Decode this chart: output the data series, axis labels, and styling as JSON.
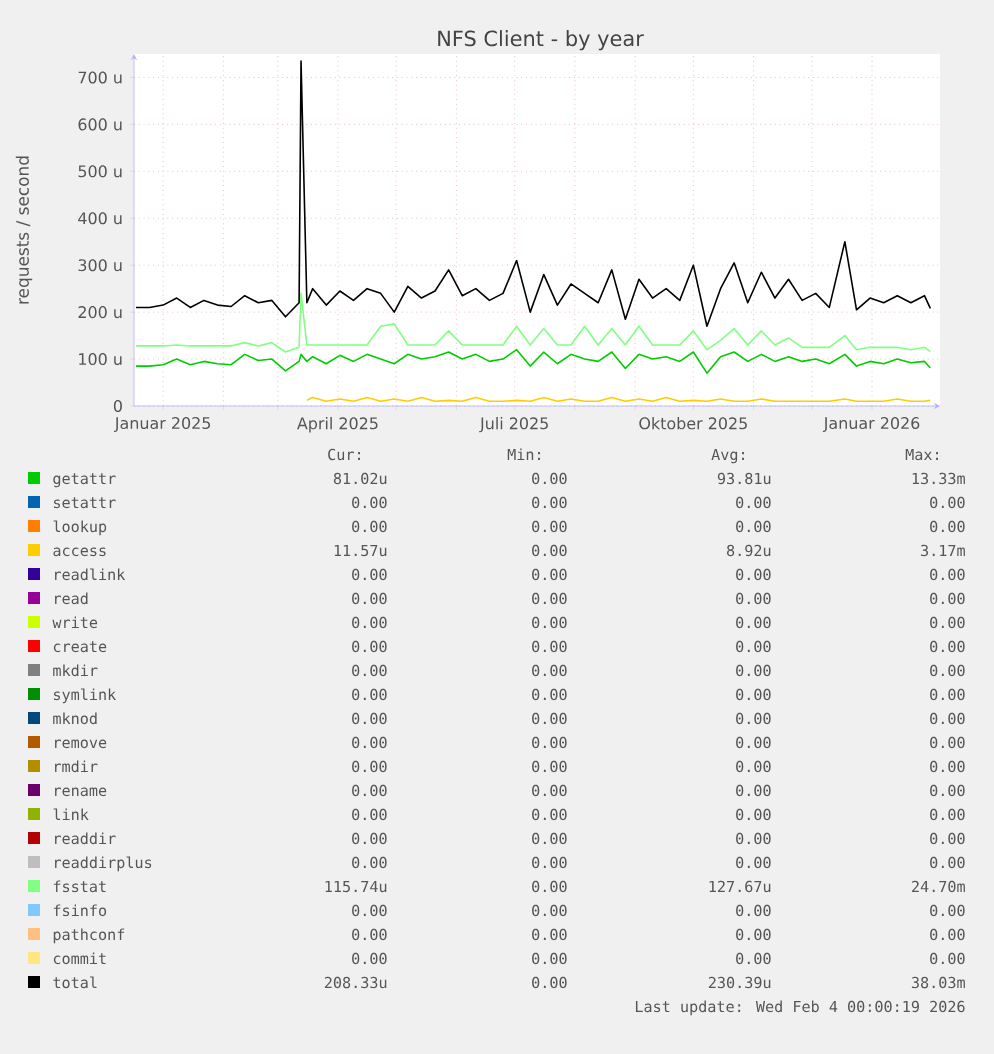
{
  "chart_data": {
    "type": "line",
    "title": "NFS Client - by year",
    "ylabel": "requests / second",
    "x": [
      "2024-12-18",
      "2024-12-25",
      "2025-01-01",
      "2025-01-08",
      "2025-01-15",
      "2025-01-22",
      "2025-01-29",
      "2025-02-05",
      "2025-02-12",
      "2025-02-19",
      "2025-02-26",
      "2025-03-05",
      "2025-03-12",
      "2025-03-13",
      "2025-03-16",
      "2025-03-19",
      "2025-03-26",
      "2025-04-02",
      "2025-04-09",
      "2025-04-16",
      "2025-04-23",
      "2025-04-30",
      "2025-05-07",
      "2025-05-14",
      "2025-05-21",
      "2025-05-28",
      "2025-06-04",
      "2025-06-11",
      "2025-06-18",
      "2025-06-25",
      "2025-07-02",
      "2025-07-09",
      "2025-07-16",
      "2025-07-23",
      "2025-07-30",
      "2025-08-06",
      "2025-08-13",
      "2025-08-20",
      "2025-08-27",
      "2025-09-03",
      "2025-09-10",
      "2025-09-17",
      "2025-09-24",
      "2025-10-01",
      "2025-10-08",
      "2025-10-15",
      "2025-10-22",
      "2025-10-29",
      "2025-11-05",
      "2025-11-12",
      "2025-11-19",
      "2025-11-26",
      "2025-12-03",
      "2025-12-10",
      "2025-12-18",
      "2025-12-24",
      "2025-12-31",
      "2026-01-07",
      "2026-01-14",
      "2026-01-21",
      "2026-01-28",
      "2026-01-31"
    ],
    "series": [
      {
        "name": "getattr",
        "color": "#00cc00",
        "values": [
          85,
          85,
          88,
          100,
          88,
          95,
          90,
          88,
          110,
          97,
          100,
          75,
          95,
          110,
          95,
          105,
          90,
          108,
          95,
          110,
          100,
          90,
          110,
          100,
          105,
          115,
          100,
          110,
          95,
          100,
          120,
          85,
          115,
          90,
          110,
          100,
          95,
          115,
          80,
          110,
          100,
          105,
          95,
          115,
          70,
          105,
          115,
          95,
          110,
          95,
          105,
          95,
          100,
          90,
          110,
          85,
          95,
          90,
          100,
          92,
          95,
          81
        ]
      },
      {
        "name": "setattr",
        "color": "#0066b3",
        "values": [
          null,
          null,
          null,
          null,
          null,
          null,
          null,
          null,
          null,
          null,
          null,
          null,
          null,
          null,
          null,
          null,
          null,
          null,
          null,
          null,
          null,
          null,
          null,
          null,
          null,
          null,
          null,
          null,
          null,
          null,
          null,
          null,
          null,
          null,
          null,
          null,
          null,
          null,
          null,
          null,
          null,
          null,
          null,
          null,
          null,
          null,
          null,
          null,
          null,
          null,
          null,
          null,
          null,
          null,
          null,
          null,
          null,
          null,
          null,
          null,
          null,
          null
        ]
      },
      {
        "name": "lookup",
        "color": "#ff8000",
        "values": [
          null,
          null,
          null,
          null,
          null,
          null,
          null,
          null,
          null,
          null,
          null,
          null,
          null,
          null,
          null,
          null,
          null,
          null,
          null,
          null,
          null,
          null,
          null,
          null,
          null,
          null,
          null,
          null,
          null,
          null,
          null,
          null,
          null,
          null,
          null,
          null,
          null,
          null,
          null,
          null,
          null,
          null,
          null,
          null,
          null,
          null,
          null,
          null,
          null,
          null,
          null,
          null,
          null,
          null,
          null,
          null,
          null,
          null,
          null,
          null,
          null,
          null
        ]
      },
      {
        "name": "access",
        "color": "#ffcc00",
        "values": [
          null,
          null,
          null,
          null,
          null,
          null,
          null,
          null,
          null,
          null,
          null,
          null,
          null,
          null,
          12,
          18,
          10,
          15,
          10,
          18,
          10,
          15,
          10,
          18,
          10,
          12,
          10,
          18,
          10,
          10,
          12,
          10,
          18,
          10,
          15,
          10,
          10,
          18,
          10,
          15,
          10,
          18,
          10,
          12,
          10,
          15,
          10,
          10,
          15,
          10,
          10,
          10,
          10,
          10,
          15,
          10,
          10,
          10,
          15,
          10,
          10,
          12
        ]
      },
      {
        "name": "readlink",
        "color": "#330099",
        "values": [
          null,
          null,
          null,
          null,
          null,
          null,
          null,
          null,
          null,
          null,
          null,
          null,
          null,
          null,
          null,
          null,
          null,
          null,
          null,
          null,
          null,
          null,
          null,
          null,
          null,
          null,
          null,
          null,
          null,
          null,
          null,
          null,
          null,
          null,
          null,
          null,
          null,
          null,
          null,
          null,
          null,
          null,
          null,
          null,
          null,
          null,
          null,
          null,
          null,
          null,
          null,
          null,
          null,
          null,
          null,
          null,
          null,
          null,
          null,
          null,
          null,
          null
        ]
      },
      {
        "name": "read",
        "color": "#990099",
        "values": [
          null,
          null,
          null,
          null,
          null,
          null,
          null,
          null,
          null,
          null,
          null,
          null,
          null,
          null,
          null,
          null,
          null,
          null,
          null,
          null,
          null,
          null,
          null,
          null,
          null,
          null,
          null,
          null,
          null,
          null,
          null,
          null,
          null,
          null,
          null,
          null,
          null,
          null,
          null,
          null,
          null,
          null,
          null,
          null,
          null,
          null,
          null,
          null,
          null,
          null,
          null,
          null,
          null,
          null,
          null,
          null,
          null,
          null,
          null,
          null,
          null,
          null
        ]
      },
      {
        "name": "write",
        "color": "#ccff00",
        "values": [
          null,
          null,
          null,
          null,
          null,
          null,
          null,
          null,
          null,
          null,
          null,
          null,
          null,
          null,
          null,
          null,
          null,
          null,
          null,
          null,
          null,
          null,
          null,
          null,
          null,
          null,
          null,
          null,
          null,
          null,
          null,
          null,
          null,
          null,
          null,
          null,
          null,
          null,
          null,
          null,
          null,
          null,
          null,
          null,
          null,
          null,
          null,
          null,
          null,
          null,
          null,
          null,
          null,
          null,
          null,
          null,
          null,
          null,
          null,
          null,
          null,
          null
        ]
      },
      {
        "name": "create",
        "color": "#ff0000",
        "values": [
          null,
          null,
          null,
          null,
          null,
          null,
          null,
          null,
          null,
          null,
          null,
          null,
          null,
          null,
          null,
          null,
          null,
          null,
          null,
          null,
          null,
          null,
          null,
          null,
          null,
          null,
          null,
          null,
          null,
          null,
          null,
          null,
          null,
          null,
          null,
          null,
          null,
          null,
          null,
          null,
          null,
          null,
          null,
          null,
          null,
          null,
          null,
          null,
          null,
          null,
          null,
          null,
          null,
          null,
          null,
          null,
          null,
          null,
          null,
          null,
          null,
          null
        ]
      },
      {
        "name": "mkdir",
        "color": "#808080",
        "values": [
          null,
          null,
          null,
          null,
          null,
          null,
          null,
          null,
          null,
          null,
          null,
          null,
          null,
          null,
          null,
          null,
          null,
          null,
          null,
          null,
          null,
          null,
          null,
          null,
          null,
          null,
          null,
          null,
          null,
          null,
          null,
          null,
          null,
          null,
          null,
          null,
          null,
          null,
          null,
          null,
          null,
          null,
          null,
          null,
          null,
          null,
          null,
          null,
          null,
          null,
          null,
          null,
          null,
          null,
          null,
          null,
          null,
          null,
          null,
          null,
          null,
          null
        ]
      },
      {
        "name": "symlink",
        "color": "#008f00",
        "values": [
          null,
          null,
          null,
          null,
          null,
          null,
          null,
          null,
          null,
          null,
          null,
          null,
          null,
          null,
          null,
          null,
          null,
          null,
          null,
          null,
          null,
          null,
          null,
          null,
          null,
          null,
          null,
          null,
          null,
          null,
          null,
          null,
          null,
          null,
          null,
          null,
          null,
          null,
          null,
          null,
          null,
          null,
          null,
          null,
          null,
          null,
          null,
          null,
          null,
          null,
          null,
          null,
          null,
          null,
          null,
          null,
          null,
          null,
          null,
          null,
          null,
          null
        ]
      },
      {
        "name": "mknod",
        "color": "#00487d",
        "values": [
          null,
          null,
          null,
          null,
          null,
          null,
          null,
          null,
          null,
          null,
          null,
          null,
          null,
          null,
          null,
          null,
          null,
          null,
          null,
          null,
          null,
          null,
          null,
          null,
          null,
          null,
          null,
          null,
          null,
          null,
          null,
          null,
          null,
          null,
          null,
          null,
          null,
          null,
          null,
          null,
          null,
          null,
          null,
          null,
          null,
          null,
          null,
          null,
          null,
          null,
          null,
          null,
          null,
          null,
          null,
          null,
          null,
          null,
          null,
          null,
          null,
          null
        ]
      },
      {
        "name": "remove",
        "color": "#b35a00",
        "values": [
          null,
          null,
          null,
          null,
          null,
          null,
          null,
          null,
          null,
          null,
          null,
          null,
          null,
          null,
          null,
          null,
          null,
          null,
          null,
          null,
          null,
          null,
          null,
          null,
          null,
          null,
          null,
          null,
          null,
          null,
          null,
          null,
          null,
          null,
          null,
          null,
          null,
          null,
          null,
          null,
          null,
          null,
          null,
          null,
          null,
          null,
          null,
          null,
          null,
          null,
          null,
          null,
          null,
          null,
          null,
          null,
          null,
          null,
          null,
          null,
          null,
          null
        ]
      },
      {
        "name": "rmdir",
        "color": "#b38f00",
        "values": [
          null,
          null,
          null,
          null,
          null,
          null,
          null,
          null,
          null,
          null,
          null,
          null,
          null,
          null,
          null,
          null,
          null,
          null,
          null,
          null,
          null,
          null,
          null,
          null,
          null,
          null,
          null,
          null,
          null,
          null,
          null,
          null,
          null,
          null,
          null,
          null,
          null,
          null,
          null,
          null,
          null,
          null,
          null,
          null,
          null,
          null,
          null,
          null,
          null,
          null,
          null,
          null,
          null,
          null,
          null,
          null,
          null,
          null,
          null,
          null,
          null,
          null
        ]
      },
      {
        "name": "rename",
        "color": "#6b006b",
        "values": [
          null,
          null,
          null,
          null,
          null,
          null,
          null,
          null,
          null,
          null,
          null,
          null,
          null,
          null,
          null,
          null,
          null,
          null,
          null,
          null,
          null,
          null,
          null,
          null,
          null,
          null,
          null,
          null,
          null,
          null,
          null,
          null,
          null,
          null,
          null,
          null,
          null,
          null,
          null,
          null,
          null,
          null,
          null,
          null,
          null,
          null,
          null,
          null,
          null,
          null,
          null,
          null,
          null,
          null,
          null,
          null,
          null,
          null,
          null,
          null,
          null,
          null
        ]
      },
      {
        "name": "link",
        "color": "#8fb300",
        "values": [
          null,
          null,
          null,
          null,
          null,
          null,
          null,
          null,
          null,
          null,
          null,
          null,
          null,
          null,
          null,
          null,
          null,
          null,
          null,
          null,
          null,
          null,
          null,
          null,
          null,
          null,
          null,
          null,
          null,
          null,
          null,
          null,
          null,
          null,
          null,
          null,
          null,
          null,
          null,
          null,
          null,
          null,
          null,
          null,
          null,
          null,
          null,
          null,
          null,
          null,
          null,
          null,
          null,
          null,
          null,
          null,
          null,
          null,
          null,
          null,
          null,
          null
        ]
      },
      {
        "name": "readdir",
        "color": "#b30000",
        "values": [
          null,
          null,
          null,
          null,
          null,
          null,
          null,
          null,
          null,
          null,
          null,
          null,
          null,
          null,
          null,
          null,
          null,
          null,
          null,
          null,
          null,
          null,
          null,
          null,
          null,
          null,
          null,
          null,
          null,
          null,
          null,
          null,
          null,
          null,
          null,
          null,
          null,
          null,
          null,
          null,
          null,
          null,
          null,
          null,
          null,
          null,
          null,
          null,
          null,
          null,
          null,
          null,
          null,
          null,
          null,
          null,
          null,
          null,
          null,
          null,
          null,
          null
        ]
      },
      {
        "name": "readdirplus",
        "color": "#bebebe",
        "values": [
          null,
          null,
          null,
          null,
          null,
          null,
          null,
          null,
          null,
          null,
          null,
          null,
          null,
          null,
          null,
          null,
          null,
          null,
          null,
          null,
          null,
          null,
          null,
          null,
          null,
          null,
          null,
          null,
          null,
          null,
          null,
          null,
          null,
          null,
          null,
          null,
          null,
          null,
          null,
          null,
          null,
          null,
          null,
          null,
          null,
          null,
          null,
          null,
          null,
          null,
          null,
          null,
          null,
          null,
          null,
          null,
          null,
          null,
          null,
          null,
          null,
          null
        ]
      },
      {
        "name": "fsstat",
        "color": "#80ff80",
        "values": [
          128,
          128,
          128,
          130,
          128,
          128,
          128,
          128,
          135,
          128,
          135,
          115,
          125,
          240,
          130,
          130,
          130,
          130,
          130,
          130,
          170,
          175,
          130,
          130,
          130,
          160,
          130,
          130,
          130,
          130,
          170,
          130,
          165,
          130,
          130,
          170,
          130,
          165,
          130,
          170,
          130,
          130,
          130,
          160,
          120,
          140,
          165,
          130,
          160,
          130,
          145,
          125,
          125,
          125,
          150,
          120,
          125,
          125,
          125,
          120,
          125,
          116
        ]
      },
      {
        "name": "fsinfo",
        "color": "#80c9ff",
        "values": [
          null,
          null,
          null,
          null,
          null,
          null,
          null,
          null,
          null,
          null,
          null,
          null,
          null,
          null,
          null,
          null,
          null,
          null,
          null,
          null,
          null,
          null,
          null,
          null,
          null,
          null,
          null,
          null,
          null,
          null,
          null,
          null,
          null,
          null,
          null,
          null,
          null,
          null,
          null,
          null,
          null,
          null,
          null,
          null,
          null,
          null,
          null,
          null,
          null,
          null,
          null,
          null,
          null,
          null,
          null,
          null,
          null,
          null,
          null,
          null,
          null,
          null
        ]
      },
      {
        "name": "pathconf",
        "color": "#ffc080",
        "values": [
          null,
          null,
          null,
          null,
          null,
          null,
          null,
          null,
          null,
          null,
          null,
          null,
          null,
          null,
          null,
          null,
          null,
          null,
          null,
          null,
          null,
          null,
          null,
          null,
          null,
          null,
          null,
          null,
          null,
          null,
          null,
          null,
          null,
          null,
          null,
          null,
          null,
          null,
          null,
          null,
          null,
          null,
          null,
          null,
          null,
          null,
          null,
          null,
          null,
          null,
          null,
          null,
          null,
          null,
          null,
          null,
          null,
          null,
          null,
          null,
          null,
          null
        ]
      },
      {
        "name": "commit",
        "color": "#ffe680",
        "values": [
          null,
          null,
          null,
          null,
          null,
          null,
          null,
          null,
          null,
          null,
          null,
          null,
          null,
          null,
          null,
          null,
          null,
          null,
          null,
          null,
          null,
          null,
          null,
          null,
          null,
          null,
          null,
          null,
          null,
          null,
          null,
          null,
          null,
          null,
          null,
          null,
          null,
          null,
          null,
          null,
          null,
          null,
          null,
          null,
          null,
          null,
          null,
          null,
          null,
          null,
          null,
          null,
          null,
          null,
          null,
          null,
          null,
          null,
          null,
          null,
          null,
          null
        ]
      },
      {
        "name": "total",
        "color": "#000000",
        "values": [
          210,
          210,
          215,
          230,
          210,
          225,
          215,
          212,
          235,
          220,
          225,
          190,
          220,
          735,
          220,
          250,
          215,
          245,
          225,
          250,
          240,
          200,
          255,
          230,
          245,
          290,
          235,
          250,
          225,
          240,
          310,
          200,
          280,
          215,
          260,
          240,
          220,
          290,
          185,
          270,
          230,
          250,
          225,
          300,
          170,
          250,
          305,
          220,
          285,
          230,
          270,
          225,
          240,
          210,
          350,
          205,
          230,
          220,
          235,
          220,
          235,
          208
        ]
      }
    ],
    "xlim": [
      "2024-12-17",
      "2026-02-05"
    ],
    "xticks": [
      {
        "value": "2025-01-01",
        "label": "Januar 2025"
      },
      {
        "value": "2025-02-01",
        "label": null
      },
      {
        "value": "2025-03-01",
        "label": null
      },
      {
        "value": "2025-04-01",
        "label": "April 2025"
      },
      {
        "value": "2025-05-01",
        "label": null
      },
      {
        "value": "2025-06-01",
        "label": null
      },
      {
        "value": "2025-07-01",
        "label": "Juli 2025"
      },
      {
        "value": "2025-08-01",
        "label": null
      },
      {
        "value": "2025-09-01",
        "label": null
      },
      {
        "value": "2025-10-01",
        "label": "Oktober 2025"
      },
      {
        "value": "2025-11-01",
        "label": null
      },
      {
        "value": "2025-12-01",
        "label": null
      },
      {
        "value": "2026-01-01",
        "label": "Januar 2026"
      }
    ],
    "ylim": [
      0,
      750
    ],
    "yticks": [
      0,
      {
        "value": 100,
        "label": "100 u"
      },
      {
        "value": 200,
        "label": "200 u"
      },
      {
        "value": 300,
        "label": "300 u"
      },
      {
        "value": 400,
        "label": "400 u"
      },
      {
        "value": 500,
        "label": "500 u"
      },
      {
        "value": 600,
        "label": "600 u"
      },
      {
        "value": 700,
        "label": "700 u"
      }
    ],
    "grid": true,
    "legend": "bottom",
    "marker": "none",
    "line_style": "solid",
    "annotations": [
      "Cur:",
      "Min:",
      "Avg:",
      "Max:",
      "81.02u",
      "0.00",
      "93.81u",
      "13.33m",
      "0.00",
      "0.00",
      "0.00",
      "0.00",
      "0.00",
      "0.00",
      "0.00",
      "0.00",
      "11.57u",
      "0.00",
      "8.92u",
      "3.17m",
      "0.00",
      "0.00",
      "0.00",
      "0.00",
      "0.00",
      "0.00",
      "0.00",
      "0.00",
      "0.00",
      "0.00",
      "0.00",
      "0.00",
      "0.00",
      "0.00",
      "0.00",
      "0.00",
      "0.00",
      "0.00",
      "0.00",
      "0.00",
      "0.00",
      "0.00",
      "0.00",
      "0.00",
      "0.00",
      "0.00",
      "0.00",
      "0.00",
      "0.00",
      "0.00",
      "0.00",
      "0.00",
      "0.00",
      "0.00",
      "0.00",
      "0.00",
      "0.00",
      "0.00",
      "0.00",
      "0.00",
      "0.00",
      "0.00",
      "0.00",
      "0.00",
      "0.00",
      "0.00",
      "0.00",
      "0.00",
      "0.00",
      "0.00",
      "0.00",
      "0.00",
      "115.74u",
      "0.00",
      "127.67u",
      "24.70m",
      "0.00",
      "0.00",
      "0.00",
      "0.00",
      "0.00",
      "0.00",
      "0.00",
      "0.00",
      "0.00",
      "0.00",
      "0.00",
      "0.00",
      "208.33u",
      "0.00",
      "230.39u",
      "38.03m",
      "Last update: Wed Feb  4 00:00:19 2026"
    ]
  }
}
